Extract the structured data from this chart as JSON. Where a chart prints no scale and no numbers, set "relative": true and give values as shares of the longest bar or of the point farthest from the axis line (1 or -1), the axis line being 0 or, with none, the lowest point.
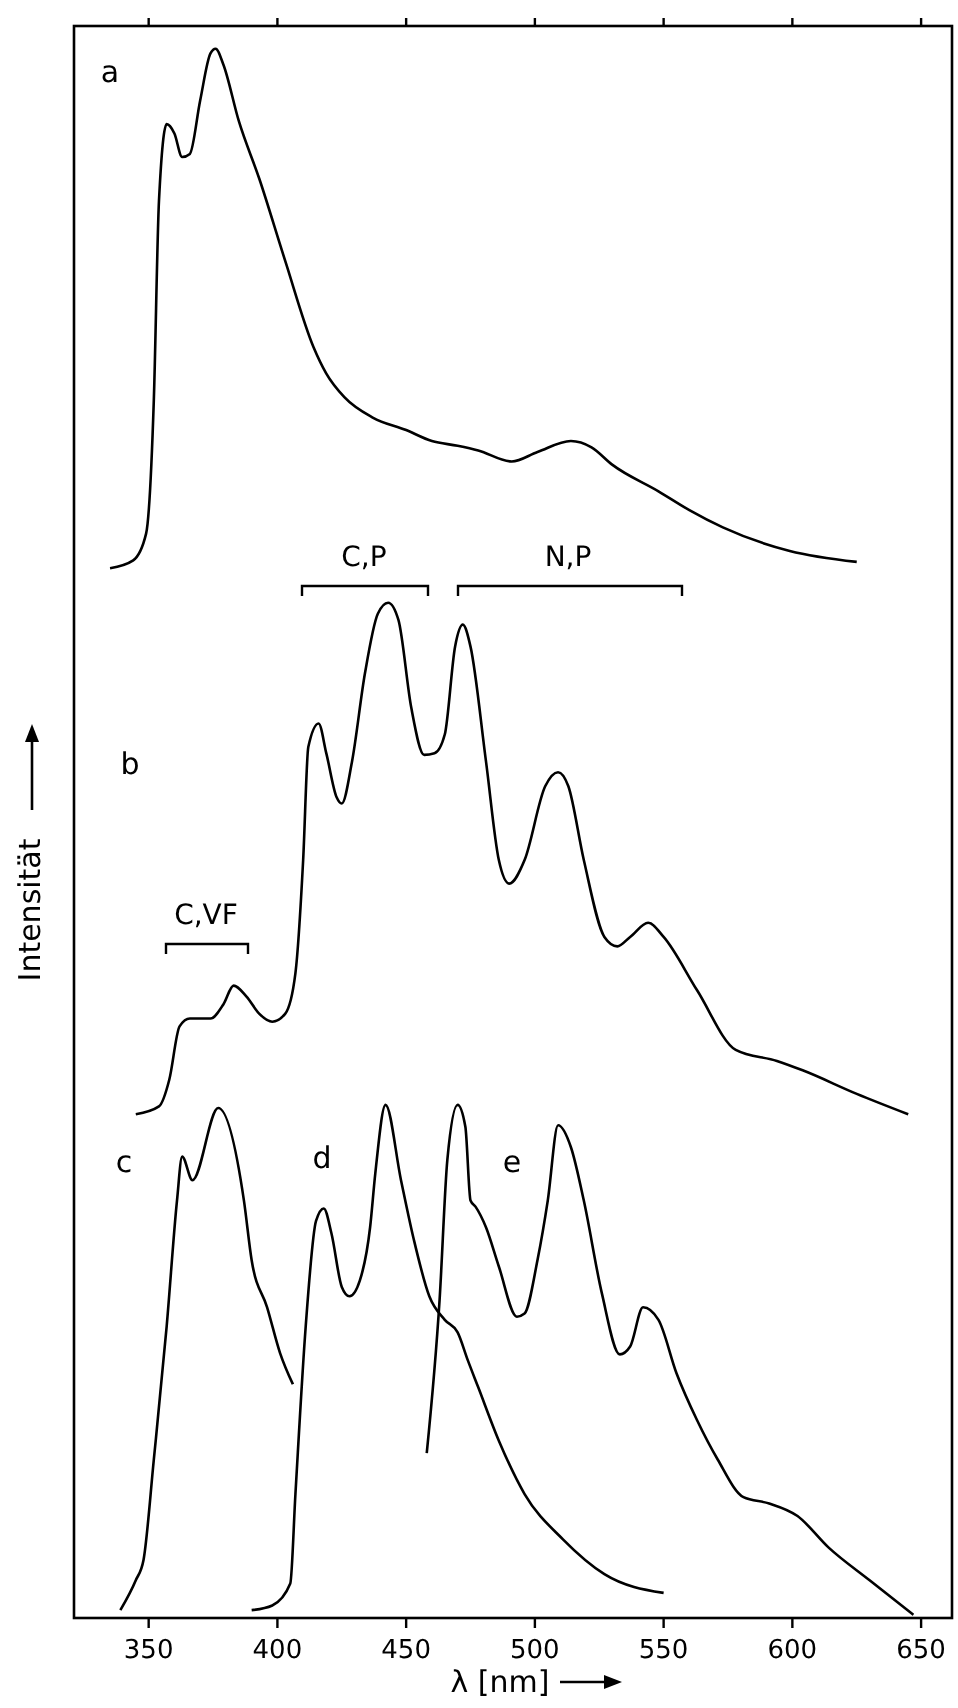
{
  "chart_data": {
    "type": "line",
    "relative": true,
    "xlabel": "λ [nm]",
    "ylabel": "Intensität",
    "xlim": [
      321,
      662
    ],
    "xticks": [
      350,
      400,
      450,
      500,
      550,
      600,
      650
    ],
    "marker": "none",
    "line_style": "solid",
    "series": [
      {
        "color": "#000000",
        "x": [
          335,
          344,
          349,
          352,
          354,
          357,
          360,
          363,
          366,
          370,
          374,
          376,
          379,
          385,
          393,
          403,
          414,
          419,
          426,
          437,
          450,
          460,
          470,
          478,
          491,
          501,
          514,
          522,
          530,
          548,
          560,
          573,
          599,
          625
        ],
        "values": [
          0.669,
          0.674,
          0.691,
          0.776,
          0.903,
          0.952,
          0.946,
          0.931,
          0.933,
          0.967,
          0.997,
          1.0,
          0.99,
          0.954,
          0.917,
          0.865,
          0.81,
          0.793,
          0.778,
          0.765,
          0.757,
          0.75,
          0.747,
          0.744,
          0.737,
          0.743,
          0.75,
          0.746,
          0.735,
          0.718,
          0.706,
          0.695,
          0.68,
          0.673
        ]
      },
      {
        "color": "#000000",
        "x": [
          345,
          354,
          358,
          362,
          366,
          374,
          379,
          383,
          388,
          393,
          398,
          403,
          407,
          410,
          412,
          416,
          419,
          423,
          425,
          429,
          434,
          439,
          443,
          447,
          452,
          457,
          461,
          465,
          469,
          472,
          475,
          481,
          486,
          490,
          496,
          504,
          509,
          513,
          519,
          527,
          532,
          537,
          544,
          550,
          563,
          578,
          594,
          604,
          625,
          645
        ],
        "values": [
          0.321,
          0.326,
          0.343,
          0.377,
          0.382,
          0.382,
          0.391,
          0.403,
          0.396,
          0.385,
          0.38,
          0.385,
          0.411,
          0.483,
          0.555,
          0.57,
          0.551,
          0.523,
          0.519,
          0.546,
          0.602,
          0.64,
          0.647,
          0.636,
          0.58,
          0.55,
          0.551,
          0.563,
          0.619,
          0.633,
          0.619,
          0.546,
          0.483,
          0.468,
          0.483,
          0.53,
          0.539,
          0.53,
          0.483,
          0.434,
          0.428,
          0.434,
          0.443,
          0.434,
          0.4,
          0.362,
          0.355,
          0.349,
          0.334,
          0.321
        ]
      },
      {
        "color": "#000000",
        "x": [
          339,
          345,
          348,
          352,
          357,
          361,
          363,
          367,
          377,
          387,
          390,
          396,
          401,
          406
        ],
        "values": [
          0.005,
          0.024,
          0.037,
          0.101,
          0.186,
          0.266,
          0.294,
          0.279,
          0.325,
          0.266,
          0.228,
          0.198,
          0.169,
          0.149
        ]
      },
      {
        "color": "#000000",
        "x": [
          390,
          398,
          405,
          407,
          411,
          415,
          418,
          421,
          425,
          428,
          432,
          436,
          438,
          442,
          448,
          453,
          459,
          465,
          470,
          474,
          478,
          486,
          496,
          511,
          527,
          550
        ],
        "values": [
          0.005,
          0.008,
          0.022,
          0.079,
          0.186,
          0.253,
          0.261,
          0.245,
          0.211,
          0.205,
          0.215,
          0.249,
          0.283,
          0.327,
          0.279,
          0.241,
          0.205,
          0.19,
          0.182,
          0.164,
          0.147,
          0.113,
          0.079,
          0.05,
          0.028,
          0.016
        ]
      },
      {
        "color": "#000000",
        "x": [
          458,
          463,
          466,
          470,
          473,
          475,
          477,
          481,
          486,
          493,
          496,
          501,
          505,
          509,
          514,
          519,
          526,
          533,
          537,
          542,
          548,
          555,
          563,
          571,
          581,
          591,
          602,
          614,
          630,
          647
        ],
        "values": [
          0.105,
          0.203,
          0.292,
          0.327,
          0.313,
          0.266,
          0.262,
          0.249,
          0.224,
          0.192,
          0.194,
          0.228,
          0.266,
          0.314,
          0.3,
          0.266,
          0.207,
          0.168,
          0.173,
          0.198,
          0.19,
          0.156,
          0.126,
          0.101,
          0.077,
          0.073,
          0.065,
          0.045,
          0.024,
          0.002
        ]
      }
    ],
    "annotations": [
      "a",
      "b",
      "c",
      "d",
      "e",
      "C,P",
      "N,P",
      "C,VF"
    ]
  }
}
